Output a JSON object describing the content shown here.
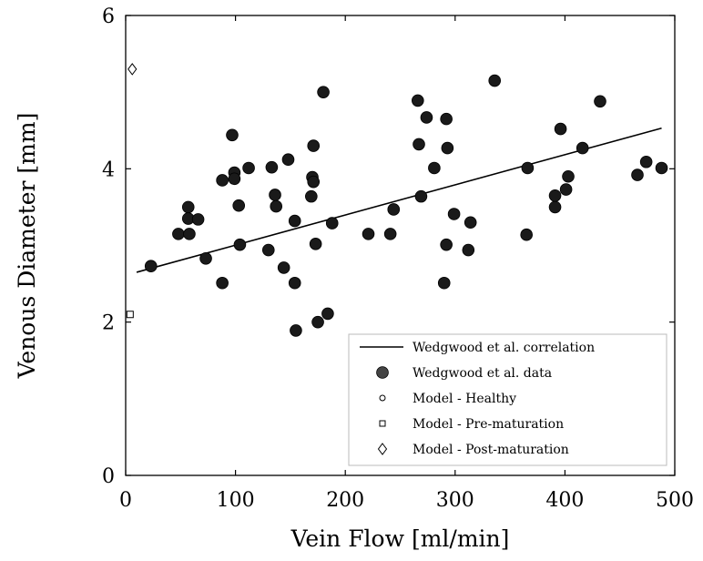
{
  "chart_data": {
    "type": "scatter",
    "xlabel": "Vein Flow [ml/min]",
    "ylabel": "Venous Diameter [mm]",
    "xlim": [
      0,
      500
    ],
    "ylim": [
      0,
      6
    ],
    "xticks": [
      "0",
      "100",
      "200",
      "300",
      "400",
      "500"
    ],
    "yticks": [
      "0",
      "2",
      "4",
      "6"
    ],
    "grid": false,
    "legend_position": "bottom-right",
    "legend": [
      {
        "label": "Wedgwood et al. correlation",
        "marker": "line"
      },
      {
        "label": "Wedgwood et al. data",
        "marker": "filled-circle"
      },
      {
        "label": "Model - Healthy",
        "marker": "open-circle"
      },
      {
        "label": "Model - Pre-maturation",
        "marker": "open-square"
      },
      {
        "label": "Model - Post-maturation",
        "marker": "open-diamond"
      }
    ],
    "series": [
      {
        "name": "Wedgwood et al. correlation",
        "type": "line",
        "points": [
          [
            10,
            2.65
          ],
          [
            488,
            4.53
          ]
        ]
      },
      {
        "name": "Wedgwood et al. data",
        "type": "scatter",
        "points": [
          [
            23,
            2.73
          ],
          [
            48,
            3.15
          ],
          [
            57,
            3.5
          ],
          [
            57,
            3.35
          ],
          [
            58,
            3.15
          ],
          [
            66,
            3.34
          ],
          [
            73,
            2.83
          ],
          [
            88,
            3.85
          ],
          [
            88,
            2.51
          ],
          [
            97,
            4.44
          ],
          [
            99,
            3.95
          ],
          [
            99,
            3.87
          ],
          [
            103,
            3.52
          ],
          [
            104,
            3.01
          ],
          [
            112,
            4.01
          ],
          [
            130,
            2.94
          ],
          [
            133,
            4.02
          ],
          [
            136,
            3.66
          ],
          [
            137,
            3.51
          ],
          [
            144,
            2.71
          ],
          [
            148,
            4.12
          ],
          [
            154,
            2.51
          ],
          [
            154,
            3.32
          ],
          [
            155,
            1.89
          ],
          [
            169,
            3.64
          ],
          [
            170,
            3.89
          ],
          [
            171,
            3.83
          ],
          [
            171,
            4.3
          ],
          [
            173,
            3.02
          ],
          [
            175,
            2.0
          ],
          [
            180,
            5.0
          ],
          [
            184,
            2.11
          ],
          [
            188,
            3.29
          ],
          [
            221,
            3.15
          ],
          [
            241,
            3.15
          ],
          [
            244,
            3.47
          ],
          [
            266,
            4.89
          ],
          [
            267,
            4.32
          ],
          [
            269,
            3.64
          ],
          [
            274,
            4.67
          ],
          [
            281,
            4.01
          ],
          [
            290,
            2.51
          ],
          [
            292,
            4.65
          ],
          [
            292,
            3.01
          ],
          [
            293,
            4.27
          ],
          [
            299,
            3.41
          ],
          [
            312,
            2.94
          ],
          [
            314,
            3.3
          ],
          [
            336,
            5.15
          ],
          [
            365,
            3.14
          ],
          [
            366,
            4.01
          ],
          [
            391,
            3.5
          ],
          [
            391,
            3.65
          ],
          [
            396,
            4.52
          ],
          [
            401,
            3.73
          ],
          [
            403,
            3.9
          ],
          [
            416,
            4.27
          ],
          [
            432,
            4.88
          ],
          [
            466,
            3.92
          ],
          [
            474,
            4.09
          ],
          [
            488,
            4.01
          ]
        ]
      },
      {
        "name": "Model - Pre-maturation",
        "type": "scatter",
        "points": [
          [
            4,
            2.1
          ]
        ]
      },
      {
        "name": "Model - Post-maturation",
        "type": "scatter",
        "points": [
          [
            6,
            5.3
          ]
        ]
      }
    ],
    "colors": {
      "data_fill": "#1a1a1a",
      "line": "#000000",
      "frame": "#000000"
    }
  }
}
